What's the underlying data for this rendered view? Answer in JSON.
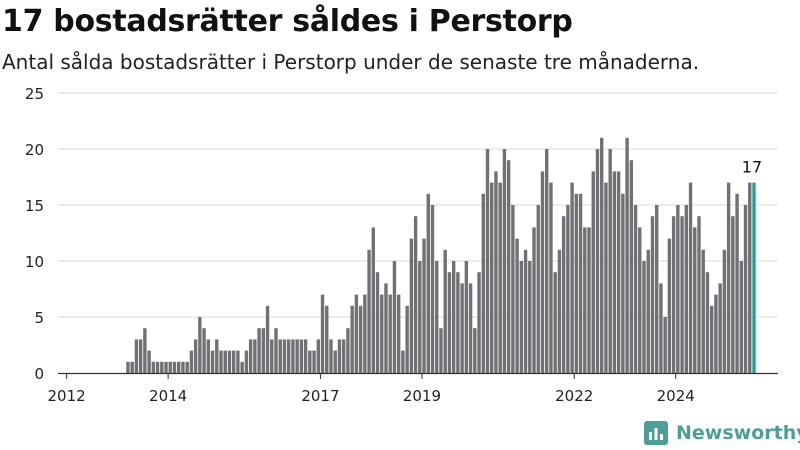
{
  "title": "17 bostadsrätter såldes i Perstorp",
  "subtitle": "Antal sålda bostadsrätter i Perstorp under de senaste tre månaderna.",
  "brand": {
    "name": "Newsworthy",
    "icon": "newsworthy-logo-icon",
    "color": "#4e9e97"
  },
  "colors": {
    "bar": "#717075",
    "highlight": "#27a096",
    "grid": "#d9d9d9",
    "axis": "#333333"
  },
  "chart_data": {
    "type": "bar",
    "title": "17 bostadsrätter såldes i Perstorp",
    "subtitle": "Antal sålda bostadsrätter i Perstorp under de senaste tre månaderna.",
    "xlabel": "",
    "ylabel": "",
    "ylim": [
      0,
      25
    ],
    "yticks": [
      0,
      5,
      10,
      15,
      20,
      25
    ],
    "xtick_labels": [
      "2012",
      "2014",
      "2017",
      "2019",
      "2022",
      "2024"
    ],
    "grid": true,
    "start": "2011-12",
    "frequency": "monthly",
    "highlight_label": "17",
    "values": [
      0,
      0,
      0,
      0,
      0,
      0,
      0,
      0,
      0,
      0,
      0,
      0,
      0,
      0,
      0,
      1,
      1,
      3,
      3,
      4,
      2,
      1,
      1,
      1,
      1,
      1,
      1,
      1,
      1,
      1,
      2,
      3,
      5,
      4,
      3,
      2,
      3,
      2,
      2,
      2,
      2,
      2,
      1,
      2,
      3,
      3,
      4,
      4,
      6,
      3,
      4,
      3,
      3,
      3,
      3,
      3,
      3,
      3,
      2,
      2,
      3,
      7,
      6,
      3,
      2,
      3,
      3,
      4,
      6,
      7,
      6,
      7,
      11,
      13,
      9,
      7,
      8,
      7,
      10,
      7,
      2,
      6,
      12,
      14,
      10,
      12,
      16,
      15,
      10,
      4,
      11,
      9,
      10,
      9,
      8,
      10,
      8,
      4,
      9,
      16,
      20,
      17,
      18,
      17,
      20,
      19,
      15,
      12,
      10,
      11,
      10,
      13,
      15,
      18,
      20,
      17,
      9,
      11,
      14,
      15,
      17,
      16,
      16,
      13,
      13,
      18,
      20,
      21,
      17,
      20,
      18,
      18,
      16,
      21,
      19,
      15,
      13,
      10,
      11,
      14,
      15,
      8,
      5,
      12,
      14,
      15,
      14,
      15,
      17,
      13,
      14,
      11,
      9,
      6,
      7,
      8,
      11,
      17,
      14,
      16,
      10,
      15,
      17,
      17
    ]
  }
}
